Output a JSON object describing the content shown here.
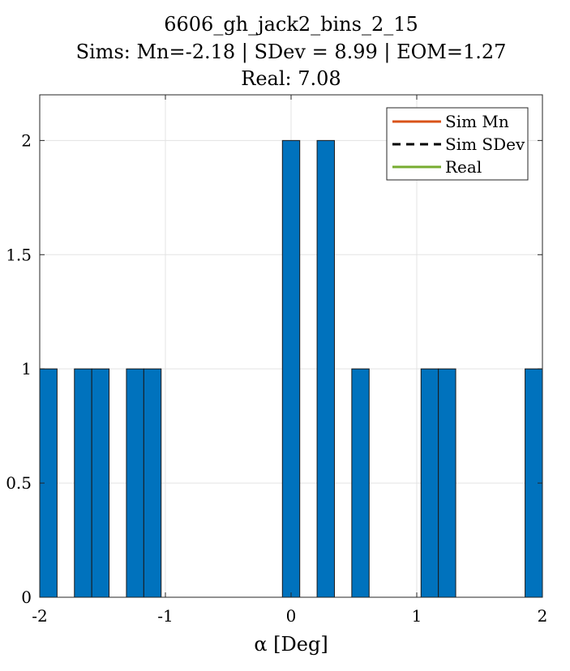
{
  "figure": {
    "title_lines": [
      "6606_gh_jack2_bins_2_15",
      "Sims: Mn=-2.18 | SDev = 8.99 | EOM=1.27",
      "Real: 7.08"
    ]
  },
  "chart_data": {
    "type": "bar",
    "subtype": "histogram",
    "title": "6606_gh_jack2_bins_2_15 / Sims: Mn=-2.18 | SDev = 8.99 | EOM=1.27 / Real: 7.08",
    "xlabel": "α [Deg]",
    "ylabel": "",
    "xlim": [
      -2,
      2
    ],
    "ylim": [
      0,
      2.2
    ],
    "grid": true,
    "xticks": [
      -2,
      -1,
      0,
      1,
      2
    ],
    "xtick_labels": [
      "-2",
      "-1",
      "0",
      "1",
      "2"
    ],
    "yticks": [
      0,
      0.5,
      1,
      1.5,
      2
    ],
    "ytick_labels": [
      "0",
      "0.5",
      "1",
      "1.5",
      "2"
    ],
    "bin_width": 0.138,
    "bins": [
      {
        "x0": -2.0,
        "x1": -1.862,
        "count": 1
      },
      {
        "x0": -1.724,
        "x1": -1.586,
        "count": 1
      },
      {
        "x0": -1.586,
        "x1": -1.448,
        "count": 1
      },
      {
        "x0": -1.31,
        "x1": -1.172,
        "count": 1
      },
      {
        "x0": -1.172,
        "x1": -1.034,
        "count": 1
      },
      {
        "x0": -0.069,
        "x1": 0.069,
        "count": 2
      },
      {
        "x0": 0.207,
        "x1": 0.345,
        "count": 2
      },
      {
        "x0": 0.483,
        "x1": 0.621,
        "count": 1
      },
      {
        "x0": 1.034,
        "x1": 1.172,
        "count": 1
      },
      {
        "x0": 1.172,
        "x1": 1.31,
        "count": 1
      },
      {
        "x0": 1.862,
        "x1": 2.0,
        "count": 1
      }
    ],
    "bar_color": "#0072BD",
    "bar_edge_color": "#1a1a1a",
    "legend": {
      "placement": "top-right",
      "entries": [
        {
          "label": "Sim Mn",
          "color": "#D95319",
          "style": "solid"
        },
        {
          "label": "Sim SDev",
          "color": "#000000",
          "style": "dashed"
        },
        {
          "label": "Real",
          "color": "#77AC30",
          "style": "solid"
        }
      ]
    }
  }
}
